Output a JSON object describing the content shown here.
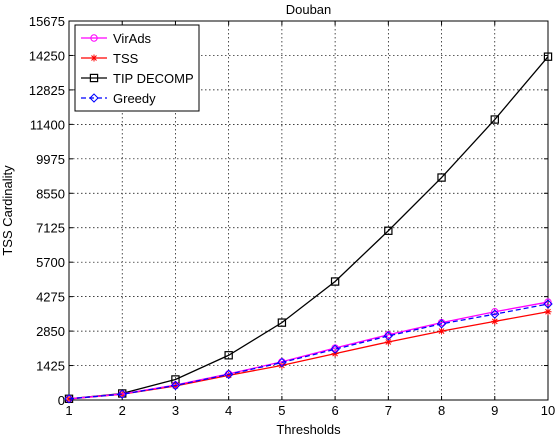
{
  "chart_data": {
    "type": "line",
    "title": "Douban",
    "xlabel": "Thresholds",
    "ylabel": "TSS Cardinality",
    "xlim": [
      1,
      10
    ],
    "ylim": [
      0,
      15675
    ],
    "xticks": [
      1,
      2,
      3,
      4,
      5,
      6,
      7,
      8,
      9,
      10
    ],
    "yticks": [
      0,
      1425,
      2850,
      4275,
      5700,
      7125,
      8550,
      9975,
      11400,
      12825,
      14250,
      15675
    ],
    "grid": true,
    "legend_position": "top-left",
    "x": [
      1,
      2,
      3,
      4,
      5,
      6,
      7,
      8,
      9,
      10
    ],
    "series": [
      {
        "name": "VirAds",
        "color": "#ff00ff",
        "marker": "circle",
        "line": "solid",
        "values": [
          50,
          250,
          620,
          1080,
          1580,
          2150,
          2700,
          3200,
          3650,
          4050
        ]
      },
      {
        "name": "TSS",
        "color": "#ff0000",
        "marker": "star",
        "line": "solid",
        "values": [
          40,
          240,
          580,
          1020,
          1430,
          1920,
          2400,
          2850,
          3250,
          3650
        ]
      },
      {
        "name": "TIP DECOMP",
        "color": "#000000",
        "marker": "square",
        "line": "solid",
        "values": [
          50,
          270,
          850,
          1850,
          3200,
          4900,
          7000,
          9200,
          11600,
          14200
        ]
      },
      {
        "name": "Greedy",
        "color": "#0000ff",
        "marker": "diamond",
        "line": "dashed",
        "values": [
          50,
          240,
          600,
          1060,
          1550,
          2100,
          2650,
          3150,
          3550,
          3970
        ]
      }
    ]
  }
}
